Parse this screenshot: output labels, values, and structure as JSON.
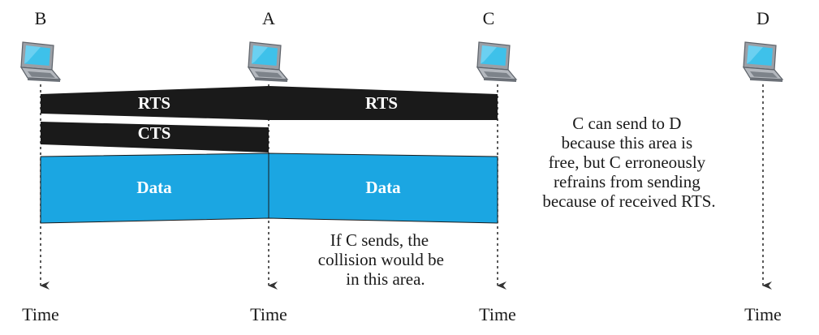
{
  "stations": [
    {
      "id": "B",
      "name": "B",
      "time_label": "Time",
      "icon": "laptop-icon"
    },
    {
      "id": "A",
      "name": "A",
      "time_label": "Time",
      "icon": "laptop-icon"
    },
    {
      "id": "C",
      "name": "C",
      "time_label": "Time",
      "icon": "laptop-icon"
    },
    {
      "id": "D",
      "name": "D",
      "time_label": "Time",
      "icon": "laptop-icon"
    }
  ],
  "frames": {
    "rts_left": {
      "label": "RTS",
      "color": "#1a1a1a"
    },
    "rts_right": {
      "label": "RTS",
      "color": "#1a1a1a"
    },
    "cts": {
      "label": "CTS",
      "color": "#1a1a1a"
    },
    "data_left": {
      "label": "Data",
      "color": "#1ba6e2"
    },
    "data_right": {
      "label": "Data",
      "color": "#1ba6e2"
    }
  },
  "notes": {
    "c_to_d": [
      "C can send to D",
      "because this area is",
      "free, but C erroneously",
      "refrains from sending",
      "because of received RTS."
    ],
    "collision": [
      "If C sends, the",
      "collision would be",
      "in this area."
    ]
  },
  "colors": {
    "frame_dark": "#1a1a1a",
    "data_blue": "#1ba6e2",
    "laptop_body": "#9a9fa6",
    "laptop_screen": "#3ec1ea"
  }
}
